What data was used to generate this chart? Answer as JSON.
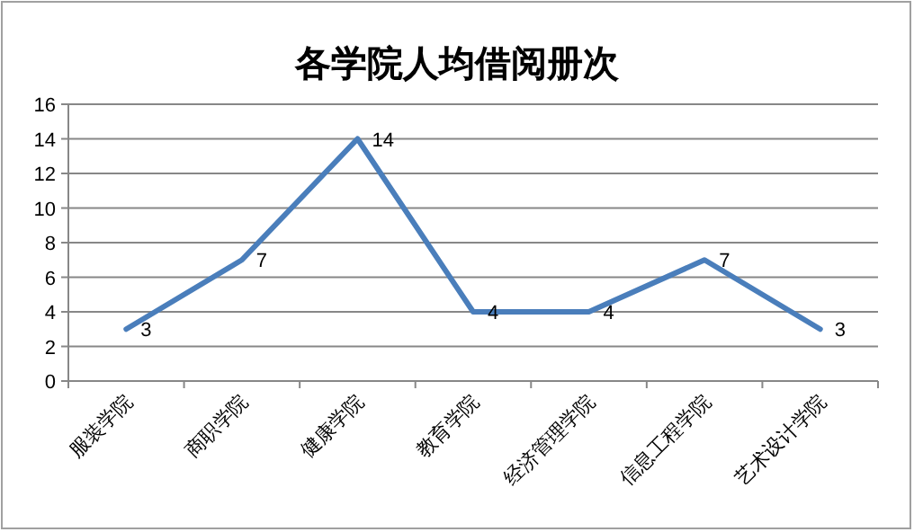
{
  "chart_data": {
    "type": "line",
    "title": "各学院人均借阅册次",
    "categories": [
      "服装学院",
      "商职学院",
      "健康学院",
      "教育学院",
      "经济管理学院",
      "信息工程学院",
      "艺术设计学院"
    ],
    "values": [
      3,
      7,
      14,
      4,
      4,
      7,
      3
    ],
    "color": "#4a7ebb",
    "ylim": [
      0,
      16
    ],
    "yticks": [
      0,
      2,
      4,
      6,
      8,
      10,
      12,
      14,
      16
    ],
    "grid": "y",
    "data_labels": true,
    "marker": "none",
    "line_style": "solid"
  }
}
